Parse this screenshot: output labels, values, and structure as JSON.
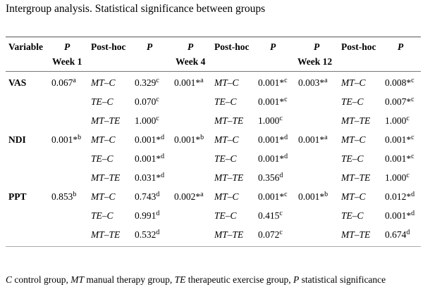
{
  "caption": "Intergroup analysis. Statistical significance between groups",
  "header": {
    "variable": "Variable",
    "p": "P",
    "posthoc": "Post-hoc",
    "week1": "Week 1",
    "week4": "Week 4",
    "week12": "Week 12"
  },
  "rows": [
    {
      "variable": "VAS",
      "lines": [
        {
          "w1_p": "0.067",
          "w1_p_sup": "a",
          "w1_ph": "MT–C",
          "w1_ph_p": "0.329",
          "w1_ph_p_sup": "c",
          "w4_p": "0.001*",
          "w4_p_sup": "a",
          "w4_ph": "MT–C",
          "w4_ph_p": "0.001*",
          "w4_ph_p_sup": "c",
          "w12_p": "0.003*",
          "w12_p_sup": "a",
          "w12_ph": "MT–C",
          "w12_ph_p": "0.008*",
          "w12_ph_p_sup": "c"
        },
        {
          "w1_ph": "TE–C",
          "w1_ph_p": "0.070",
          "w1_ph_p_sup": "c",
          "w4_ph": "TE–C",
          "w4_ph_p": "0.001*",
          "w4_ph_p_sup": "c",
          "w12_ph": "TE–C",
          "w12_ph_p": "0.007*",
          "w12_ph_p_sup": "c"
        },
        {
          "w1_ph": "MT–TE",
          "w1_ph_p": "1.000",
          "w1_ph_p_sup": "c",
          "w4_ph": "MT–TE",
          "w4_ph_p": "1.000",
          "w4_ph_p_sup": "c",
          "w12_ph": "MT–TE",
          "w12_ph_p": "1.000",
          "w12_ph_p_sup": "c"
        }
      ]
    },
    {
      "variable": "NDI",
      "lines": [
        {
          "w1_p": "0.001*",
          "w1_p_sup": "b",
          "w1_ph": "MT–C",
          "w1_ph_p": "0.001*",
          "w1_ph_p_sup": "d",
          "w4_p": "0.001*",
          "w4_p_sup": "b",
          "w4_ph": "MT–C",
          "w4_ph_p": "0.001*",
          "w4_ph_p_sup": "d",
          "w12_p": "0.001*",
          "w12_p_sup": "a",
          "w12_ph": "MT–C",
          "w12_ph_p": "0.001*",
          "w12_ph_p_sup": "c"
        },
        {
          "w1_ph": "TE–C",
          "w1_ph_p": "0.001*",
          "w1_ph_p_sup": "d",
          "w4_ph": "TE–C",
          "w4_ph_p": "0.001*",
          "w4_ph_p_sup": "d",
          "w12_ph": "TE–C",
          "w12_ph_p": "0.001*",
          "w12_ph_p_sup": "c"
        },
        {
          "w1_ph": "MT–TE",
          "w1_ph_p": "0.031*",
          "w1_ph_p_sup": "d",
          "w4_ph": "MT–TE",
          "w4_ph_p": "0.356",
          "w4_ph_p_sup": "d",
          "w12_ph": "MT–TE",
          "w12_ph_p": "1.000",
          "w12_ph_p_sup": "c"
        }
      ]
    },
    {
      "variable": "PPT",
      "lines": [
        {
          "w1_p": "0.853",
          "w1_p_sup": "b",
          "w1_ph": "MT–C",
          "w1_ph_p": "0.743",
          "w1_ph_p_sup": "d",
          "w4_p": "0.002*",
          "w4_p_sup": "a",
          "w4_ph": "MT–C",
          "w4_ph_p": "0.001*",
          "w4_ph_p_sup": "c",
          "w12_p": "0.001*",
          "w12_p_sup": "b",
          "w12_ph": "MT–C",
          "w12_ph_p": "0.012*",
          "w12_ph_p_sup": "d"
        },
        {
          "w1_ph": "TE–C",
          "w1_ph_p": "0.991",
          "w1_ph_p_sup": "d",
          "w4_ph": "TE–C",
          "w4_ph_p": "0.415",
          "w4_ph_p_sup": "c",
          "w12_ph": "TE–C",
          "w12_ph_p": "0.001*",
          "w12_ph_p_sup": "d"
        },
        {
          "w1_ph": "MT–TE",
          "w1_ph_p": "0.532",
          "w1_ph_p_sup": "d",
          "w4_ph": "MT–TE",
          "w4_ph_p": "0.072",
          "w4_ph_p_sup": "c",
          "w12_ph": "MT–TE",
          "w12_ph_p": "0.674",
          "w12_ph_p_sup": "d"
        }
      ]
    }
  ],
  "footnote": [
    {
      "abbr": "C",
      "text": " control group, "
    },
    {
      "abbr": "MT",
      "text": " manual therapy group, "
    },
    {
      "abbr": "TE",
      "text": " therapeutic exercise group, "
    },
    {
      "abbr": "P",
      "text": " statistical significance"
    }
  ]
}
